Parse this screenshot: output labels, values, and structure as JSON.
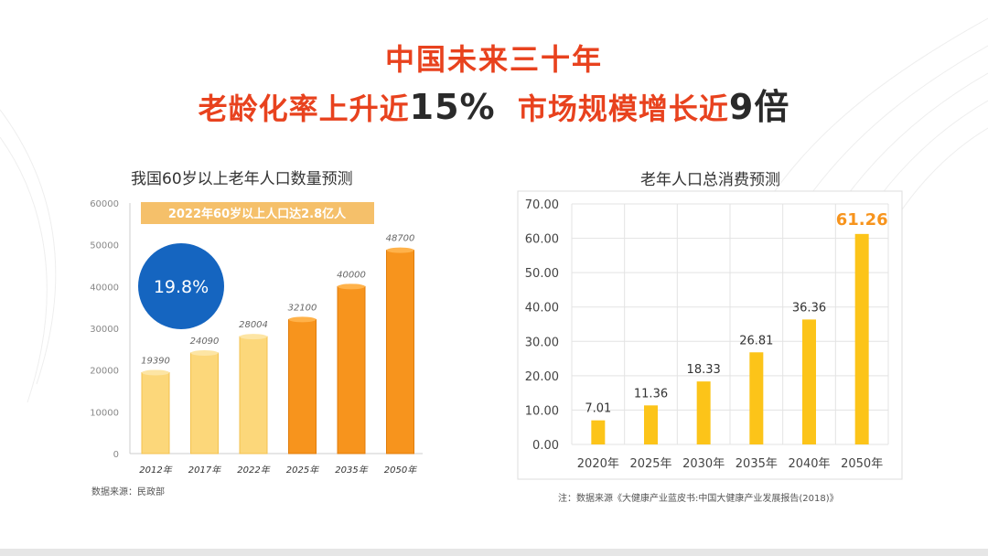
{
  "headline": {
    "line1": "中国未来三十年",
    "line2_part1": "老龄化率上升近",
    "line2_part2": "15%",
    "line2_part3": "市场规模增长近",
    "line2_part4": "9倍"
  },
  "left_chart": {
    "title": "我国60岁以上老年人口数量预测",
    "banner": "2022年60岁以上人口达2.8亿人",
    "circle_label": "19.8%",
    "source": "数据来源：民政部",
    "colors": {
      "light": "#fcd77a",
      "dark": "#f7941d",
      "circle": "#1565c0",
      "banner": "#f5c06a"
    }
  },
  "right_chart": {
    "title": "老年人口总消费预测",
    "source": "注：数据来源《大健康产业蓝皮书:中国大健康产业发展报告(2018)》",
    "colors": {
      "bar": "#fcc419",
      "highlight": "#f7941d"
    }
  },
  "chart_data": [
    {
      "type": "bar",
      "title": "我国60岁以上老年人口数量预测",
      "categories": [
        "2012年",
        "2017年",
        "2022年",
        "2025年",
        "2035年",
        "2050年"
      ],
      "values": [
        19390,
        24090,
        28004,
        32100,
        40000,
        48700
      ],
      "y_ticks": [
        0,
        10000,
        20000,
        30000,
        40000,
        50000,
        60000
      ],
      "ylim": [
        0,
        60000
      ],
      "grid": false
    },
    {
      "type": "bar",
      "title": "老年人口总消费预测",
      "categories": [
        "2020年",
        "2025年",
        "2030年",
        "2035年",
        "2040年",
        "2050年"
      ],
      "values": [
        7.01,
        11.36,
        18.33,
        26.81,
        36.36,
        61.26
      ],
      "y_ticks": [
        "0.00",
        "10.00",
        "20.00",
        "30.00",
        "40.00",
        "50.00",
        "60.00",
        "70.00"
      ],
      "ylim": [
        0,
        70
      ],
      "grid": true
    }
  ]
}
